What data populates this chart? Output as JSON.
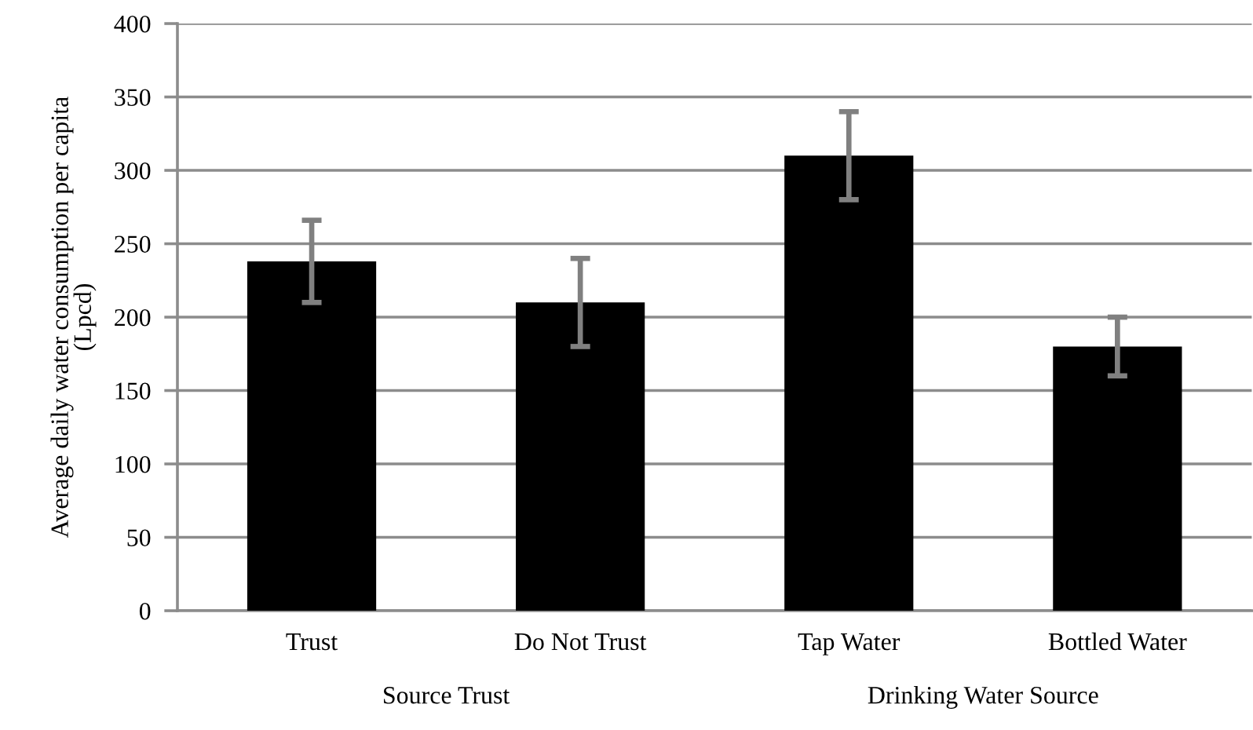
{
  "chart_data": {
    "type": "bar",
    "ylabel": "Average daily water consumption per capita\n(Lpcd)",
    "categories": [
      "Trust",
      "Do Not Trust",
      "Tap Water",
      "Bottled Water"
    ],
    "values": [
      238,
      210,
      310,
      180
    ],
    "errors": [
      28,
      30,
      30,
      20
    ],
    "color": "#000000",
    "ylim": [
      0,
      400
    ],
    "yticks": [
      0,
      50,
      100,
      150,
      200,
      250,
      300,
      350,
      400
    ],
    "grid": "y",
    "annotations": [
      "Source Trust",
      "Drinking Water Source"
    ]
  }
}
